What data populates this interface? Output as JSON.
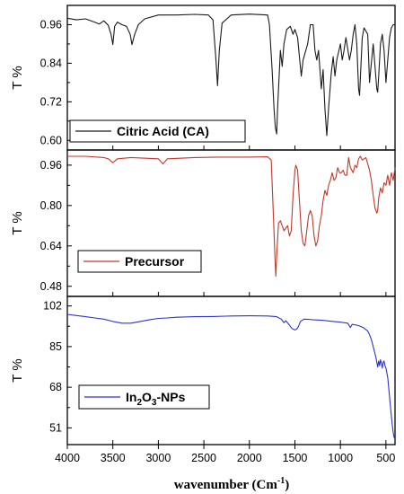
{
  "chart_data": {
    "type": "line",
    "x_axis": {
      "label": "wavenumber (Cm",
      "label_sup": "-1",
      "label_end": ")",
      "range": [
        4000,
        400
      ],
      "reversed": true,
      "ticks": [
        4000,
        3500,
        3000,
        2500,
        2000,
        1500,
        1000,
        500
      ],
      "tick_labels": [
        "4000",
        "3500",
        "3000",
        "2500",
        "2000",
        "1500",
        "1000",
        "500"
      ]
    },
    "panels": [
      {
        "series_name": "Citric Acid (CA)",
        "legend_parts": [
          {
            "t": "Citric Acid (CA)",
            "sub": false
          }
        ],
        "color": "#1a1a1a",
        "ylabel": "T %",
        "ylim": [
          0.57,
          1.02
        ],
        "yticks": [
          0.96,
          0.84,
          0.72,
          0.6
        ],
        "ytick_labels": [
          "0.96",
          "0.84",
          "0.72",
          "0.60"
        ],
        "points": [
          [
            4000,
            0.98
          ],
          [
            3900,
            0.975
          ],
          [
            3800,
            0.978
          ],
          [
            3700,
            0.968
          ],
          [
            3650,
            0.962
          ],
          [
            3600,
            0.972
          ],
          [
            3550,
            0.958
          ],
          [
            3520,
            0.93
          ],
          [
            3500,
            0.898
          ],
          [
            3480,
            0.955
          ],
          [
            3450,
            0.968
          ],
          [
            3400,
            0.96
          ],
          [
            3350,
            0.955
          ],
          [
            3310,
            0.93
          ],
          [
            3290,
            0.898
          ],
          [
            3260,
            0.93
          ],
          [
            3220,
            0.96
          ],
          [
            3150,
            0.978
          ],
          [
            3000,
            0.99
          ],
          [
            2800,
            0.99
          ],
          [
            2600,
            0.992
          ],
          [
            2450,
            0.99
          ],
          [
            2400,
            0.975
          ],
          [
            2370,
            0.86
          ],
          [
            2350,
            0.77
          ],
          [
            2330,
            0.88
          ],
          [
            2300,
            0.965
          ],
          [
            2200,
            0.99
          ],
          [
            2000,
            0.993
          ],
          [
            1800,
            0.99
          ],
          [
            1780,
            0.96
          ],
          [
            1750,
            0.82
          ],
          [
            1730,
            0.7
          ],
          [
            1715,
            0.64
          ],
          [
            1700,
            0.62
          ],
          [
            1690,
            0.7
          ],
          [
            1660,
            0.88
          ],
          [
            1640,
            0.83
          ],
          [
            1620,
            0.9
          ],
          [
            1590,
            0.945
          ],
          [
            1550,
            0.955
          ],
          [
            1520,
            0.93
          ],
          [
            1500,
            0.945
          ],
          [
            1470,
            0.92
          ],
          [
            1450,
            0.86
          ],
          [
            1430,
            0.8
          ],
          [
            1410,
            0.85
          ],
          [
            1390,
            0.87
          ],
          [
            1360,
            0.9
          ],
          [
            1330,
            0.96
          ],
          [
            1300,
            0.96
          ],
          [
            1280,
            0.88
          ],
          [
            1260,
            0.85
          ],
          [
            1240,
            0.88
          ],
          [
            1220,
            0.8
          ],
          [
            1210,
            0.76
          ],
          [
            1190,
            0.82
          ],
          [
            1170,
            0.7
          ],
          [
            1150,
            0.615
          ],
          [
            1130,
            0.7
          ],
          [
            1100,
            0.81
          ],
          [
            1080,
            0.86
          ],
          [
            1060,
            0.8
          ],
          [
            1040,
            0.85
          ],
          [
            1000,
            0.9
          ],
          [
            980,
            0.85
          ],
          [
            960,
            0.88
          ],
          [
            940,
            0.92
          ],
          [
            900,
            0.85
          ],
          [
            880,
            0.88
          ],
          [
            860,
            0.93
          ],
          [
            840,
            0.96
          ],
          [
            820,
            0.9
          ],
          [
            800,
            0.76
          ],
          [
            790,
            0.74
          ],
          [
            780,
            0.8
          ],
          [
            760,
            0.92
          ],
          [
            740,
            0.95
          ],
          [
            700,
            0.93
          ],
          [
            680,
            0.78
          ],
          [
            660,
            0.84
          ],
          [
            640,
            0.9
          ],
          [
            600,
            0.76
          ],
          [
            590,
            0.75
          ],
          [
            580,
            0.8
          ],
          [
            560,
            0.9
          ],
          [
            540,
            0.93
          ],
          [
            520,
            0.88
          ],
          [
            500,
            0.78
          ],
          [
            480,
            0.85
          ],
          [
            460,
            0.92
          ],
          [
            440,
            0.95
          ],
          [
            420,
            0.96
          ],
          [
            400,
            0.96
          ]
        ]
      },
      {
        "series_name": "Precursor",
        "legend_parts": [
          {
            "t": "Precursor",
            "sub": false
          }
        ],
        "color": "#c0392b",
        "ylabel": "T %",
        "ylim": [
          0.44,
          1.02
        ],
        "yticks": [
          0.96,
          0.8,
          0.64,
          0.48
        ],
        "ytick_labels": [
          "0.96",
          "0.80",
          "0.64",
          "0.48"
        ],
        "points": [
          [
            4000,
            0.995
          ],
          [
            3800,
            0.995
          ],
          [
            3600,
            0.99
          ],
          [
            3550,
            0.985
          ],
          [
            3500,
            0.97
          ],
          [
            3450,
            0.985
          ],
          [
            3300,
            0.99
          ],
          [
            3000,
            0.985
          ],
          [
            2950,
            0.965
          ],
          [
            2900,
            0.985
          ],
          [
            2600,
            0.99
          ],
          [
            2350,
            0.992
          ],
          [
            2000,
            0.992
          ],
          [
            1800,
            0.993
          ],
          [
            1760,
            0.98
          ],
          [
            1740,
            0.8
          ],
          [
            1720,
            0.6
          ],
          [
            1710,
            0.52
          ],
          [
            1700,
            0.6
          ],
          [
            1680,
            0.73
          ],
          [
            1660,
            0.74
          ],
          [
            1640,
            0.72
          ],
          [
            1620,
            0.7
          ],
          [
            1600,
            0.71
          ],
          [
            1580,
            0.72
          ],
          [
            1560,
            0.68
          ],
          [
            1540,
            0.7
          ],
          [
            1520,
            0.84
          ],
          [
            1500,
            0.94
          ],
          [
            1490,
            0.96
          ],
          [
            1470,
            0.94
          ],
          [
            1450,
            0.82
          ],
          [
            1430,
            0.7
          ],
          [
            1410,
            0.65
          ],
          [
            1390,
            0.64
          ],
          [
            1370,
            0.7
          ],
          [
            1350,
            0.76
          ],
          [
            1330,
            0.78
          ],
          [
            1310,
            0.76
          ],
          [
            1290,
            0.68
          ],
          [
            1270,
            0.64
          ],
          [
            1250,
            0.66
          ],
          [
            1230,
            0.72
          ],
          [
            1210,
            0.76
          ],
          [
            1190,
            0.82
          ],
          [
            1170,
            0.86
          ],
          [
            1150,
            0.84
          ],
          [
            1130,
            0.88
          ],
          [
            1110,
            0.9
          ],
          [
            1090,
            0.93
          ],
          [
            1070,
            0.9
          ],
          [
            1050,
            0.91
          ],
          [
            1030,
            0.95
          ],
          [
            1010,
            0.93
          ],
          [
            990,
            0.93
          ],
          [
            970,
            0.94
          ],
          [
            950,
            0.92
          ],
          [
            930,
            0.92
          ],
          [
            910,
            0.99
          ],
          [
            890,
            0.95
          ],
          [
            860,
            0.93
          ],
          [
            840,
            0.96
          ],
          [
            820,
            0.95
          ],
          [
            800,
            0.985
          ],
          [
            780,
            0.995
          ],
          [
            760,
            0.98
          ],
          [
            720,
            0.99
          ],
          [
            700,
            0.965
          ],
          [
            680,
            0.94
          ],
          [
            660,
            0.9
          ],
          [
            640,
            0.84
          ],
          [
            620,
            0.79
          ],
          [
            600,
            0.77
          ],
          [
            590,
            0.78
          ],
          [
            580,
            0.83
          ],
          [
            560,
            0.87
          ],
          [
            540,
            0.85
          ],
          [
            520,
            0.89
          ],
          [
            500,
            0.88
          ],
          [
            480,
            0.92
          ],
          [
            460,
            0.88
          ],
          [
            440,
            0.93
          ],
          [
            420,
            0.9
          ],
          [
            400,
            0.95
          ]
        ]
      },
      {
        "series_name": "In2O3-NPs",
        "legend_parts": [
          {
            "t": "In",
            "sub": false
          },
          {
            "t": "2",
            "sub": true
          },
          {
            "t": "O",
            "sub": false
          },
          {
            "t": "3",
            "sub": true
          },
          {
            "t": "-NPs",
            "sub": false
          }
        ],
        "color": "#2b35c8",
        "ylabel": "T %",
        "ylim": [
          44,
          106
        ],
        "yticks": [
          102,
          85,
          68,
          51
        ],
        "ytick_labels": [
          "102",
          "85",
          "68",
          "51"
        ],
        "points": [
          [
            4000,
            98.5
          ],
          [
            3900,
            98.0
          ],
          [
            3800,
            97.5
          ],
          [
            3700,
            97.0
          ],
          [
            3600,
            96.5
          ],
          [
            3500,
            95.5
          ],
          [
            3400,
            94.8
          ],
          [
            3300,
            94.8
          ],
          [
            3200,
            95.5
          ],
          [
            3100,
            96.2
          ],
          [
            3000,
            96.8
          ],
          [
            2900,
            97.0
          ],
          [
            2800,
            97.3
          ],
          [
            2600,
            97.5
          ],
          [
            2400,
            97.6
          ],
          [
            2200,
            97.8
          ],
          [
            2000,
            97.9
          ],
          [
            1800,
            97.8
          ],
          [
            1700,
            97.5
          ],
          [
            1650,
            96.5
          ],
          [
            1620,
            95.0
          ],
          [
            1600,
            95.8
          ],
          [
            1560,
            94.0
          ],
          [
            1530,
            92.5
          ],
          [
            1500,
            92.0
          ],
          [
            1480,
            92.3
          ],
          [
            1460,
            93.5
          ],
          [
            1440,
            95.5
          ],
          [
            1400,
            96.5
          ],
          [
            1350,
            96.4
          ],
          [
            1300,
            96.2
          ],
          [
            1200,
            96.0
          ],
          [
            1100,
            95.6
          ],
          [
            1000,
            95.2
          ],
          [
            920,
            94.8
          ],
          [
            890,
            93.0
          ],
          [
            870,
            94.3
          ],
          [
            800,
            93.8
          ],
          [
            750,
            93.0
          ],
          [
            700,
            91.5
          ],
          [
            680,
            90.0
          ],
          [
            660,
            88.0
          ],
          [
            640,
            85.0
          ],
          [
            620,
            82.0
          ],
          [
            610,
            80.5
          ],
          [
            600,
            78.5
          ],
          [
            590,
            76.5
          ],
          [
            580,
            79.0
          ],
          [
            570,
            77.0
          ],
          [
            560,
            79.5
          ],
          [
            550,
            78.0
          ],
          [
            540,
            76.0
          ],
          [
            530,
            78.5
          ],
          [
            520,
            79.0
          ],
          [
            510,
            77.0
          ],
          [
            500,
            76.0
          ],
          [
            490,
            74.0
          ],
          [
            480,
            72.0
          ],
          [
            470,
            68.0
          ],
          [
            460,
            64.0
          ],
          [
            450,
            60.0
          ],
          [
            440,
            56.0
          ],
          [
            430,
            52.0
          ],
          [
            420,
            49.0
          ],
          [
            410,
            47.0
          ],
          [
            400,
            46.5
          ]
        ]
      }
    ]
  }
}
